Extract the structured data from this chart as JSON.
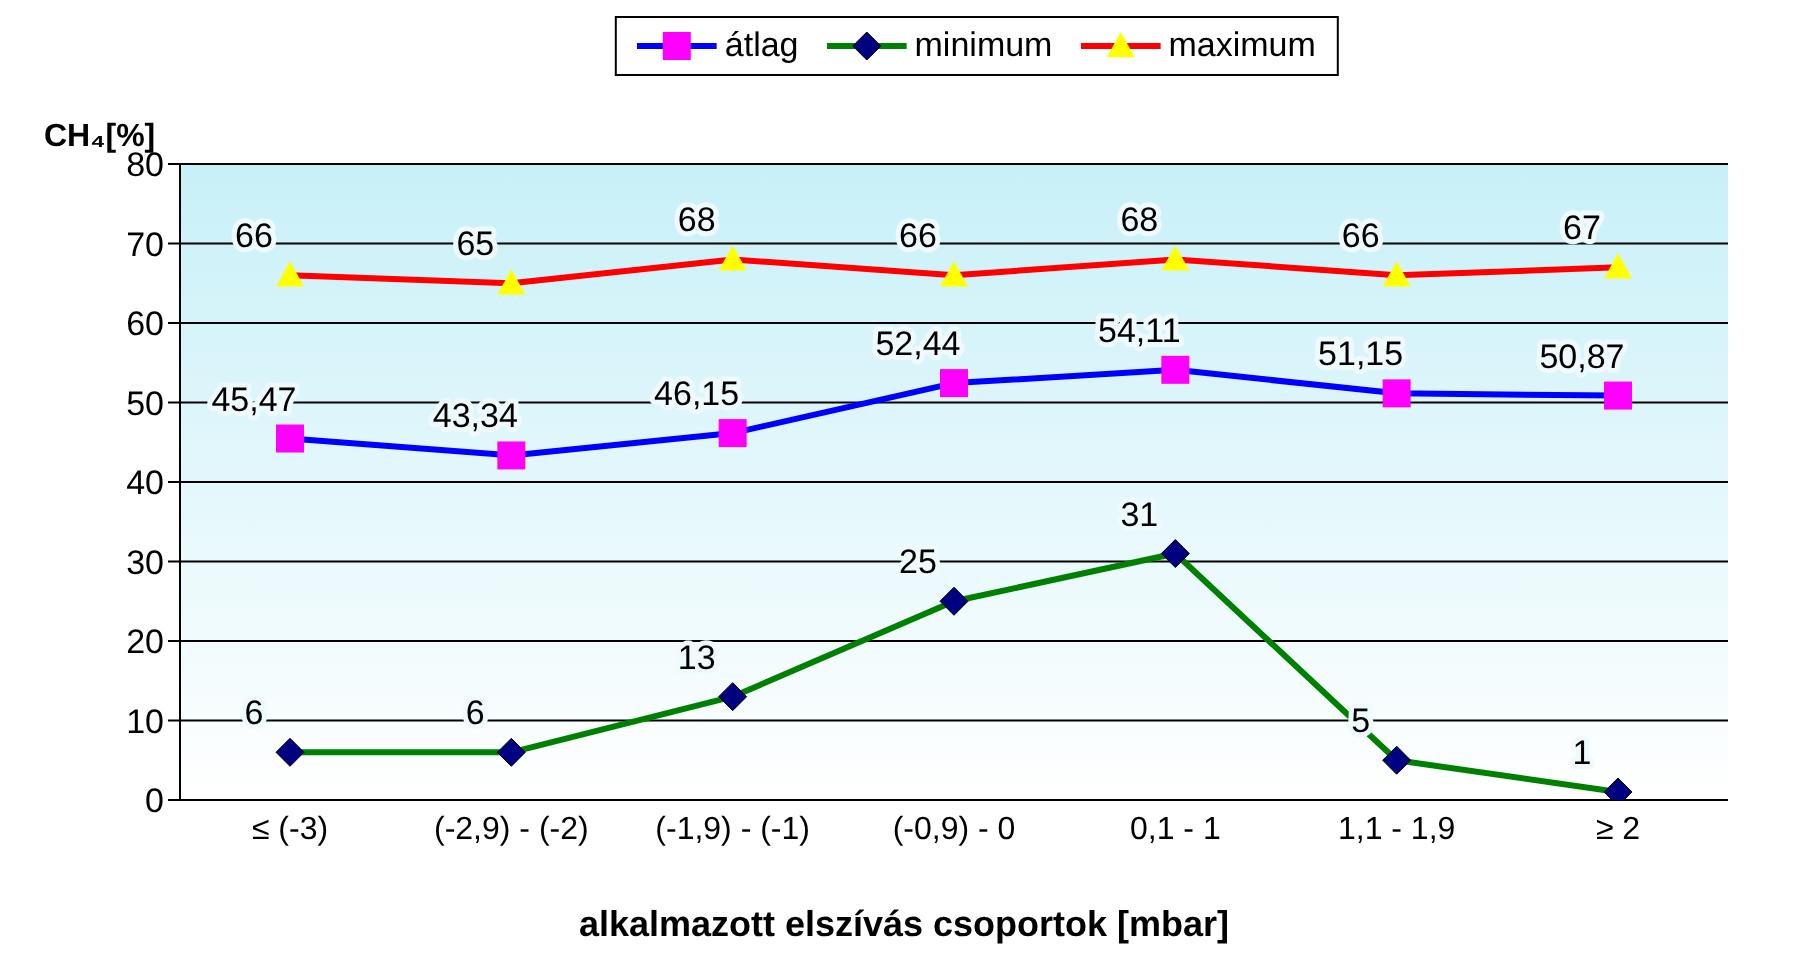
{
  "chart_data": {
    "type": "line",
    "ylabel": "CH₄[%]",
    "xlabel": "alkalmazott elszívás csoportok [mbar]",
    "categories": [
      "≤ (-3)",
      "(-2,9) - (-2)",
      "(-1,9) - (-1)",
      "(-0,9) - 0",
      "0,1 - 1",
      "1,1 - 1,9",
      "≥ 2"
    ],
    "series": [
      {
        "name": "átlag",
        "color": "#0000ff",
        "marker": "square",
        "colors": [
          "#ff00ff",
          "#ff00ff",
          "#ff00ff",
          "#ff00ff",
          "#ff00ff",
          "#ff00ff",
          "#ff00ff"
        ],
        "values": [
          45.47,
          43.34,
          46.15,
          52.44,
          54.11,
          51.15,
          50.87
        ],
        "value_labels": [
          "45,47",
          "43,34",
          "46,15",
          "52,44",
          "54,11",
          "51,15",
          "50,87"
        ]
      },
      {
        "name": "minimum",
        "color": "#008000",
        "marker": "diamond",
        "colors": [
          "#000080",
          "#000080",
          "#000080",
          "#000080",
          "#000080",
          "#000080",
          "#000080"
        ],
        "values": [
          6,
          6,
          13,
          25,
          31,
          5,
          1
        ],
        "value_labels": [
          "6",
          "6",
          "13",
          "25",
          "31",
          "5",
          "1"
        ]
      },
      {
        "name": "maximum",
        "color": "#ff0000",
        "marker": "triangle",
        "colors": [
          "#ffff00",
          "#ffff00",
          "#ffff00",
          "#ffff00",
          "#ffff00",
          "#ffff00",
          "#ffff00"
        ],
        "values": [
          66,
          65,
          68,
          66,
          68,
          66,
          67
        ],
        "value_labels": [
          "66",
          "65",
          "68",
          "66",
          "68",
          "66",
          "67"
        ]
      }
    ],
    "ylim": [
      0,
      80
    ],
    "yticks": [
      0,
      10,
      20,
      30,
      40,
      50,
      60,
      70,
      80
    ],
    "grid": "y",
    "legend": "top"
  }
}
